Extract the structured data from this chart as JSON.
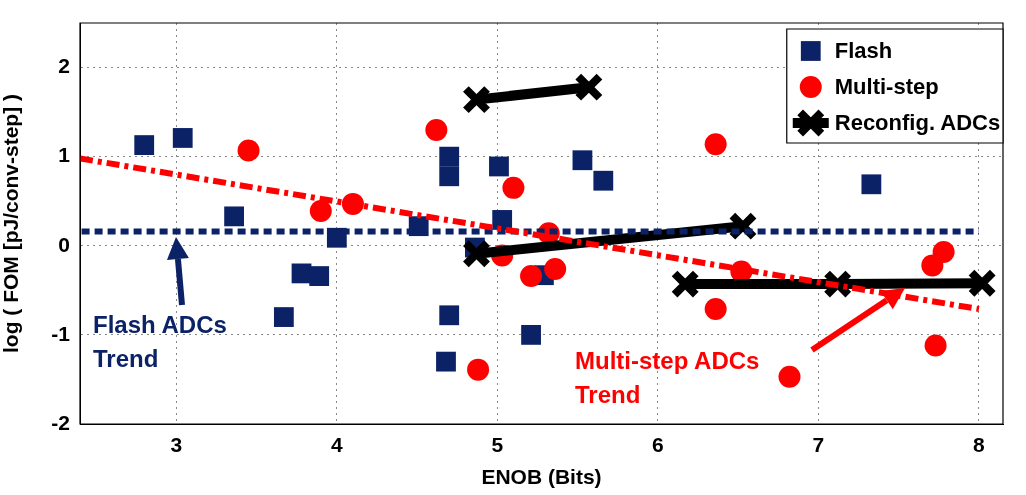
{
  "chart_data": {
    "type": "scatter",
    "xlabel": "ENOB (Bits)",
    "ylabel": "log ( FOM [pJ/conv-step] )",
    "xlim": [
      2.4,
      8.15
    ],
    "xticks": [
      3,
      4,
      5,
      6,
      7,
      8
    ],
    "ylim": [
      -2,
      2.5
    ],
    "yticks": [
      -2,
      -1,
      0,
      1,
      2
    ],
    "grid": true,
    "legend": "top right",
    "series": [
      {
        "name": "Flash",
        "type": "scatter",
        "marker": "square",
        "color": "#0c2266",
        "x": [
          2.8,
          3.04,
          3.36,
          3.78,
          3.89,
          3.67,
          4.0,
          4.51,
          4.7,
          4.7,
          4.7,
          4.68,
          5.01,
          5.03,
          4.86,
          5.21,
          5.29,
          5.53,
          5.66,
          7.33
        ],
        "values": [
          1.13,
          1.21,
          0.33,
          -0.31,
          -0.34,
          -0.8,
          0.09,
          0.22,
          1.0,
          0.78,
          -0.78,
          -1.3,
          0.89,
          0.29,
          -0.02,
          -1.0,
          -0.33,
          0.96,
          0.73,
          0.69
        ]
      },
      {
        "name": "Multi-step",
        "type": "scatter",
        "marker": "circle",
        "color": "#ff0000",
        "x": [
          3.45,
          3.9,
          4.1,
          4.62,
          5.1,
          5.03,
          5.21,
          4.88,
          5.32,
          5.36,
          6.36,
          6.36,
          6.52,
          6.82,
          7.73,
          7.71,
          7.78
        ],
        "values": [
          1.07,
          0.39,
          0.47,
          1.3,
          0.65,
          -0.11,
          -0.34,
          -1.39,
          0.14,
          -0.26,
          1.14,
          -0.71,
          -0.29,
          -1.47,
          -1.12,
          -0.22,
          -0.07
        ]
      },
      {
        "name": "Reconfig. ADCs",
        "type": "line",
        "marker": "cross",
        "line_style": "solid",
        "color": "#000000",
        "x": [
          4.87,
          5.57,
          null,
          4.87,
          6.53,
          null,
          6.17,
          7.12,
          8.02
        ],
        "values": [
          1.64,
          1.78,
          null,
          -0.09,
          0.22,
          null,
          -0.43,
          -0.43,
          -0.42
        ]
      },
      {
        "type": "line",
        "marker": "none",
        "line_style": "dotted",
        "color": "#0c2266",
        "x": [
          2.41,
          8.0
        ],
        "values": [
          0.16,
          0.16
        ]
      },
      {
        "type": "line",
        "marker": "none",
        "line_style": "dashed",
        "color": "#ff0000",
        "x": [
          2.4,
          8.0
        ],
        "values": [
          0.98,
          -0.71
        ]
      }
    ],
    "annotations": [
      "Flash ADCs\nTrend",
      "Multi-step ADCs\nTrend"
    ]
  }
}
